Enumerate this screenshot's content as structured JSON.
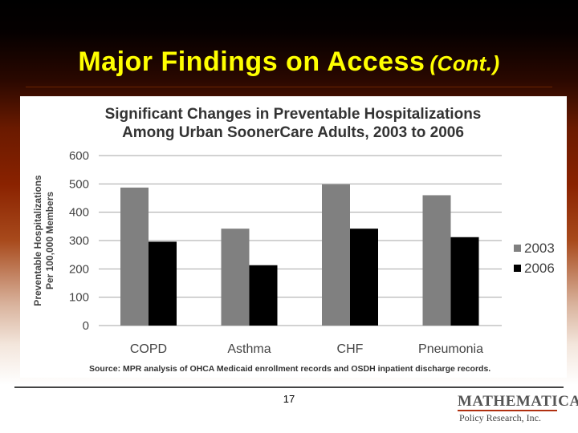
{
  "slide": {
    "title": "Major Findings on Access",
    "title_suffix": "(Cont.)",
    "page_number": "17",
    "source_note": "Source: MPR analysis of OHCA Medicaid enrollment records and OSDH inpatient discharge records.",
    "logo": {
      "name": "MATHEMATICA",
      "tagline": "Policy Research, Inc."
    },
    "colors": {
      "title": "#ffff00",
      "logo_accent": "#b03010"
    }
  },
  "chart_data": {
    "type": "bar",
    "title_lines": [
      "Significant Changes in Preventable Hospitalizations",
      "Among Urban SoonerCare Adults, 2003 to 2006"
    ],
    "ylabel_lines": [
      "Preventable Hospitalizations",
      "Per 100,000 Members"
    ],
    "xlabel": "",
    "categories": [
      "COPD",
      "Asthma",
      "CHF",
      "Pneumonia"
    ],
    "series": [
      {
        "name": "2003",
        "values": [
          487,
          342,
          498,
          460
        ],
        "color": "#808080"
      },
      {
        "name": "2006",
        "values": [
          296,
          213,
          342,
          312
        ],
        "color": "#000000"
      }
    ],
    "ylim": [
      0,
      600
    ],
    "yticks": [
      0,
      100,
      200,
      300,
      400,
      500,
      600
    ],
    "grid": true,
    "legend_position": "right"
  }
}
